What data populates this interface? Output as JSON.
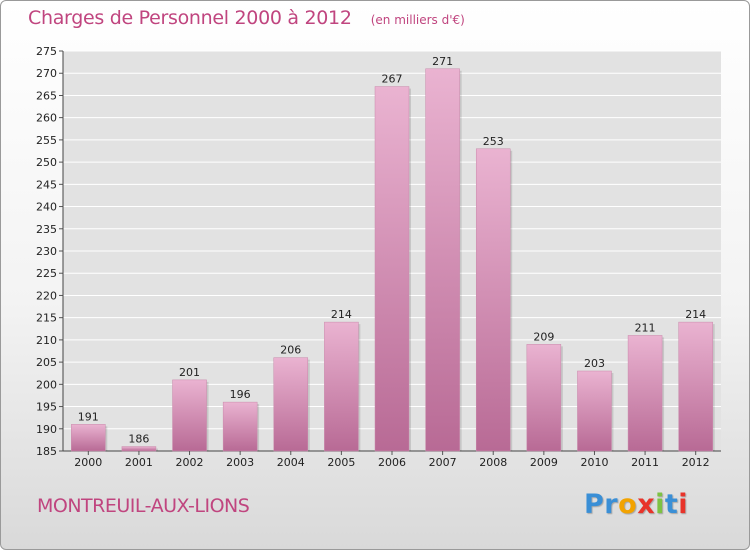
{
  "header": {
    "title": "Charges de Personnel 2000 à 2012",
    "subtitle": "(en milliers d'€)"
  },
  "footer": {
    "city": "MONTREUIL-AUX-LIONS",
    "logo": {
      "letters": [
        "P",
        "r",
        "o",
        "x",
        "i",
        "t",
        "i"
      ],
      "colors": [
        "#3a8fd6",
        "#3a8fd6",
        "#f2a300",
        "#e8332a",
        "#7dc243",
        "#3a8fd6",
        "#e8332a"
      ]
    }
  },
  "chart_data": {
    "type": "bar",
    "categories": [
      "2000",
      "2001",
      "2002",
      "2003",
      "2004",
      "2005",
      "2006",
      "2007",
      "2008",
      "2009",
      "2010",
      "2011",
      "2012"
    ],
    "values": [
      191,
      186,
      201,
      196,
      206,
      214,
      267,
      271,
      253,
      209,
      203,
      211,
      214
    ],
    "title": "Charges de Personnel 2000 à 2012",
    "xlabel": "",
    "ylabel": "",
    "ylim": [
      185,
      275
    ],
    "yticks": [
      185,
      190,
      195,
      200,
      205,
      210,
      215,
      220,
      225,
      230,
      235,
      240,
      245,
      250,
      255,
      260,
      265,
      270,
      275
    ],
    "grid": true,
    "legend": "none",
    "colors": {
      "bar": "#d889b4",
      "bar_highlight": "#eab3d1",
      "bar_shade": "#b86a95",
      "grid": "#ffffff",
      "plot_bg": "#e2e2e2"
    }
  }
}
